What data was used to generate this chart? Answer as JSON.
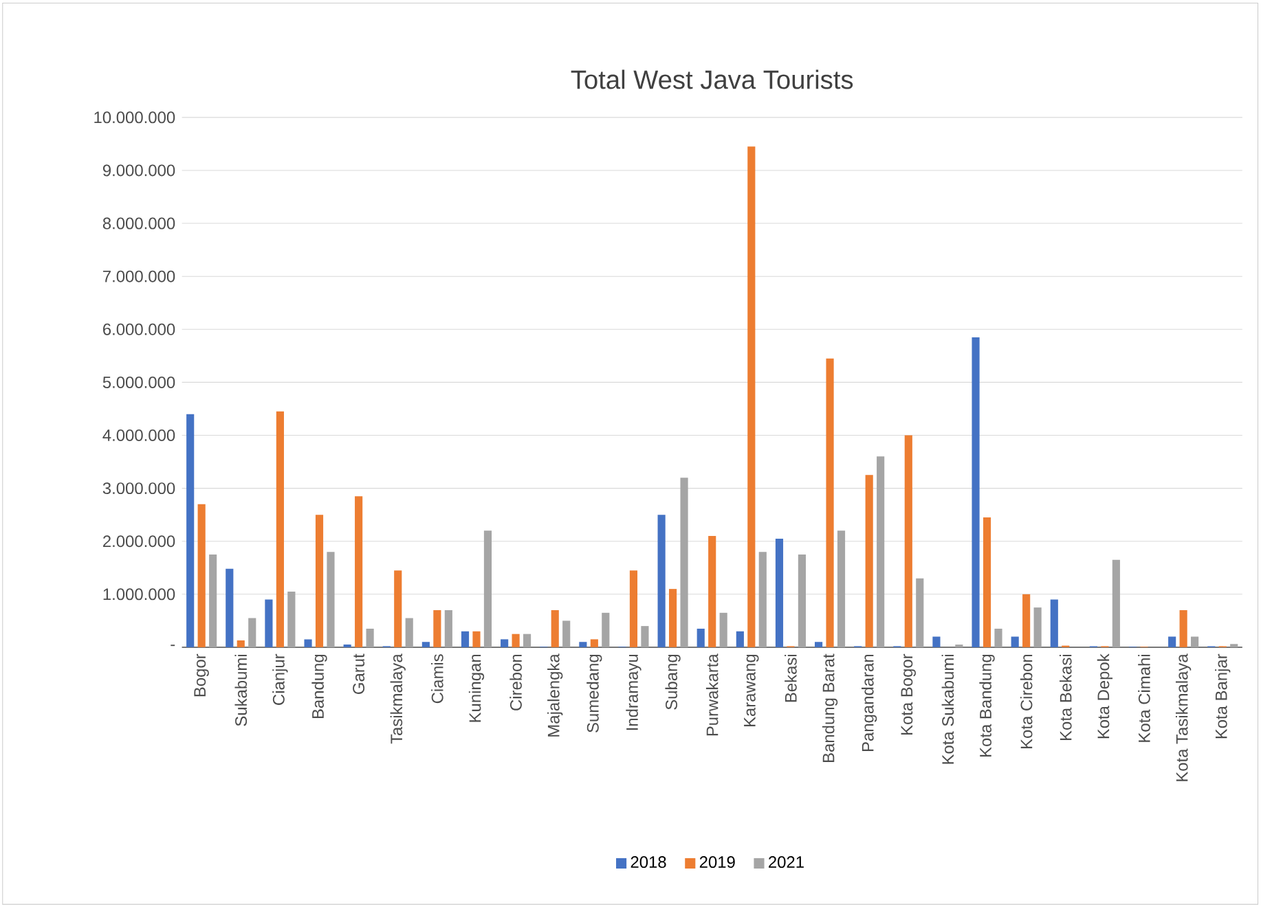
{
  "chart_data": {
    "type": "bar",
    "title": "Total West Java Tourists",
    "categories": [
      "Bogor",
      "Sukabumi",
      "Cianjur",
      "Bandung",
      "Garut",
      "Tasikmalaya",
      "Ciamis",
      "Kuningan",
      "Cirebon",
      "Majalengka",
      "Sumedang",
      "Indramayu",
      "Subang",
      "Purwakarta",
      "Karawang",
      "Bekasi",
      "Bandung Barat",
      "Pangandaran",
      "Kota Bogor",
      "Kota Sukabumi",
      "Kota Bandung",
      "Kota Cirebon",
      "Kota Bekasi",
      "Kota Depok",
      "Kota Cimahi",
      "Kota Tasikmalaya",
      "Kota Banjar"
    ],
    "series": [
      {
        "name": "2018",
        "color": "#4472c4",
        "values": [
          4400000,
          1480000,
          900000,
          150000,
          50000,
          20000,
          100000,
          300000,
          150000,
          10000,
          100000,
          10000,
          2500000,
          350000,
          300000,
          2050000,
          100000,
          20000,
          20000,
          200000,
          5850000,
          200000,
          900000,
          20000,
          10000,
          200000,
          20000
        ]
      },
      {
        "name": "2019",
        "color": "#ed7d31",
        "values": [
          2700000,
          130000,
          4450000,
          2500000,
          2850000,
          1450000,
          700000,
          300000,
          250000,
          700000,
          150000,
          1450000,
          1100000,
          2100000,
          9450000,
          20000,
          5450000,
          3250000,
          4000000,
          0,
          2450000,
          1000000,
          30000,
          20000,
          10000,
          700000,
          20000
        ]
      },
      {
        "name": "2021",
        "color": "#a5a5a5",
        "values": [
          1750000,
          550000,
          1050000,
          1800000,
          350000,
          550000,
          700000,
          2200000,
          250000,
          500000,
          650000,
          400000,
          3200000,
          650000,
          1800000,
          1750000,
          2200000,
          3600000,
          1300000,
          50000,
          350000,
          750000,
          null,
          1650000,
          null,
          200000,
          60000
        ]
      }
    ],
    "ylim": [
      0,
      10000000
    ],
    "yticks": [
      {
        "value": 0,
        "label": "-"
      },
      {
        "value": 1000000,
        "label": "1.000.000"
      },
      {
        "value": 2000000,
        "label": "2.000.000"
      },
      {
        "value": 3000000,
        "label": "3.000.000"
      },
      {
        "value": 4000000,
        "label": "4.000.000"
      },
      {
        "value": 5000000,
        "label": "5.000.000"
      },
      {
        "value": 6000000,
        "label": "6.000.000"
      },
      {
        "value": 7000000,
        "label": "7.000.000"
      },
      {
        "value": 8000000,
        "label": "8.000.000"
      },
      {
        "value": 9000000,
        "label": "9.000.000"
      },
      {
        "value": 10000000,
        "label": "10.000.000"
      }
    ],
    "grid": "y",
    "legend": "bottom"
  }
}
